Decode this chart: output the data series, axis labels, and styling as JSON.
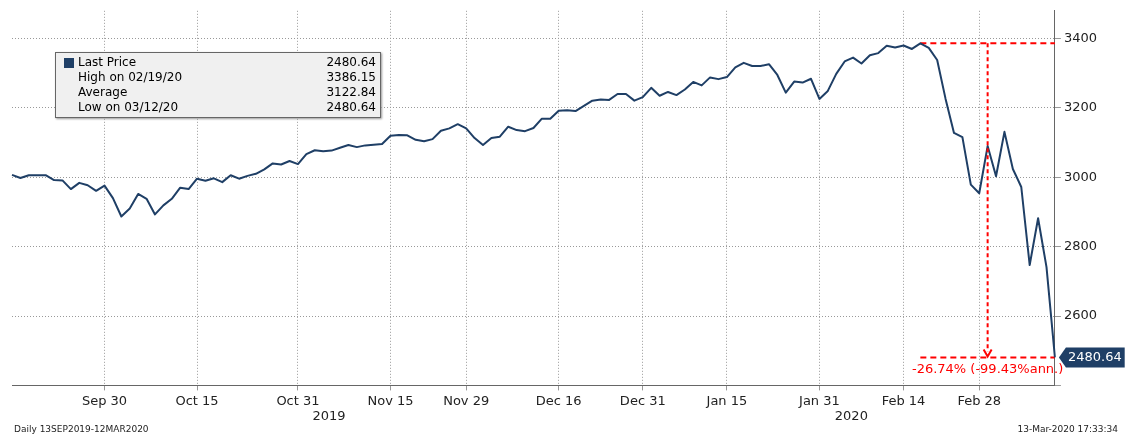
{
  "chart_data": {
    "type": "line",
    "legend": "top left",
    "grid": true,
    "marker": "none",
    "ylim": [
      2400,
      3480
    ],
    "yticks": [
      {
        "value": 2400,
        "label": null
      },
      2600,
      2800,
      3000,
      3200,
      3400
    ],
    "categories": [
      null,
      null,
      null,
      null,
      null,
      null,
      null,
      null,
      null,
      null,
      null,
      "Sep 30",
      null,
      null,
      null,
      null,
      null,
      null,
      null,
      null,
      null,
      null,
      "Oct 15",
      null,
      null,
      null,
      null,
      null,
      null,
      null,
      null,
      null,
      null,
      null,
      "Oct 31",
      null,
      null,
      null,
      null,
      null,
      null,
      null,
      null,
      null,
      null,
      "Nov 15",
      null,
      null,
      null,
      null,
      null,
      null,
      null,
      null,
      "Nov 29",
      null,
      null,
      null,
      null,
      null,
      null,
      null,
      null,
      null,
      null,
      "Dec 16",
      null,
      null,
      null,
      null,
      null,
      null,
      null,
      null,
      null,
      "Dec 31",
      null,
      null,
      null,
      null,
      null,
      null,
      null,
      null,
      null,
      "Jan 15",
      null,
      null,
      null,
      null,
      null,
      null,
      null,
      null,
      null,
      null,
      "Jan 31",
      null,
      null,
      null,
      null,
      null,
      null,
      null,
      null,
      null,
      "Feb 14",
      null,
      null,
      null,
      null,
      null,
      null,
      null,
      null,
      "Feb 28",
      null,
      null,
      null,
      null,
      null,
      null,
      null,
      null,
      null
    ],
    "series": [
      {
        "name": "Last Price",
        "color": "#1f3f66",
        "value_labels": [
          null,
          null,
          null,
          null,
          null,
          null,
          null,
          null,
          null,
          null,
          null,
          null,
          null,
          null,
          null,
          null,
          null,
          null,
          null,
          null,
          null,
          null,
          null,
          null,
          null,
          null,
          null,
          null,
          null,
          null,
          null,
          null,
          null,
          null,
          null,
          null,
          null,
          null,
          null,
          null,
          null,
          null,
          null,
          null,
          null,
          null,
          null,
          null,
          null,
          null,
          null,
          null,
          null,
          null,
          null,
          null,
          null,
          null,
          null,
          null,
          null,
          null,
          null,
          null,
          null,
          null,
          null,
          null,
          null,
          null,
          null,
          null,
          null,
          null,
          null,
          null,
          null,
          null,
          null,
          null,
          null,
          null,
          null,
          null,
          null,
          null,
          null,
          null,
          null,
          null,
          null,
          null,
          null,
          null,
          null,
          null,
          null,
          null,
          null,
          null,
          null,
          null,
          null,
          null,
          null,
          null,
          null,
          null,
          null,
          null,
          null,
          null,
          null,
          null,
          null,
          null,
          null,
          null,
          null,
          null,
          null,
          null,
          null,
          null,
          "2480.64"
        ],
        "values": [
          3007,
          2998,
          3006,
          3006,
          3006,
          2992,
          2991,
          2966,
          2984,
          2977,
          2961,
          2976,
          2940,
          2887,
          2910,
          2952,
          2938,
          2893,
          2919,
          2938,
          2970,
          2966,
          2996,
          2990,
          2997,
          2986,
          3006,
          2996,
          3004,
          3010,
          3023,
          3040,
          3037,
          3047,
          3038,
          3067,
          3078,
          3075,
          3077,
          3085,
          3093,
          3087,
          3092,
          3094,
          3096,
          3120,
          3122,
          3121,
          3108,
          3104,
          3110,
          3134,
          3141,
          3153,
          3141,
          3113,
          3093,
          3113,
          3117,
          3146,
          3136,
          3133,
          3142,
          3169,
          3169,
          3192,
          3193,
          3191,
          3206,
          3221,
          3224,
          3223,
          3240,
          3240,
          3221,
          3231,
          3258,
          3235,
          3246,
          3237,
          3253,
          3275,
          3265,
          3288,
          3283,
          3289,
          3317,
          3330,
          3321,
          3321,
          3326,
          3295,
          3244,
          3276,
          3273,
          3284,
          3226,
          3249,
          3298,
          3334,
          3345,
          3328,
          3352,
          3358,
          3379,
          3374,
          3380,
          3370,
          3386.15,
          3373,
          3338,
          3226,
          3128,
          3116,
          2979,
          2954,
          3090,
          3003,
          3131,
          3024,
          2972,
          2747,
          2882,
          2741,
          2480.64
        ]
      },
      {
        "type": "line",
        "color": "#ff0000",
        "line_style": "dashed",
        "values": [
          null,
          null,
          null,
          null,
          null,
          null,
          null,
          null,
          null,
          null,
          null,
          null,
          null,
          null,
          null,
          null,
          null,
          null,
          null,
          null,
          null,
          null,
          null,
          null,
          null,
          null,
          null,
          null,
          null,
          null,
          null,
          null,
          null,
          null,
          null,
          null,
          null,
          null,
          null,
          null,
          null,
          null,
          null,
          null,
          null,
          null,
          null,
          null,
          null,
          null,
          null,
          null,
          null,
          null,
          null,
          null,
          null,
          null,
          null,
          null,
          null,
          null,
          null,
          null,
          null,
          null,
          null,
          null,
          null,
          null,
          null,
          null,
          null,
          null,
          null,
          null,
          null,
          null,
          null,
          null,
          null,
          null,
          null,
          null,
          null,
          null,
          null,
          null,
          null,
          null,
          null,
          null,
          null,
          null,
          null,
          null,
          null,
          null,
          null,
          null,
          null,
          null,
          null,
          null,
          null,
          null,
          null,
          null,
          3386.15,
          null,
          null,
          null,
          null,
          null,
          null,
          null,
          null,
          null,
          null,
          null,
          null,
          null,
          null,
          null,
          3386.15
        ]
      },
      {
        "type": "line",
        "color": "#ff0000",
        "line_style": "dashed",
        "values": [
          null,
          null,
          null,
          null,
          null,
          null,
          null,
          null,
          null,
          null,
          null,
          null,
          null,
          null,
          null,
          null,
          null,
          null,
          null,
          null,
          null,
          null,
          null,
          null,
          null,
          null,
          null,
          null,
          null,
          null,
          null,
          null,
          null,
          null,
          null,
          null,
          null,
          null,
          null,
          null,
          null,
          null,
          null,
          null,
          null,
          null,
          null,
          null,
          null,
          null,
          null,
          null,
          null,
          null,
          null,
          null,
          null,
          null,
          null,
          null,
          null,
          null,
          null,
          null,
          null,
          null,
          null,
          null,
          null,
          null,
          null,
          null,
          null,
          null,
          null,
          null,
          null,
          null,
          null,
          null,
          null,
          null,
          null,
          null,
          null,
          null,
          null,
          null,
          null,
          null,
          null,
          null,
          null,
          null,
          null,
          null,
          null,
          null,
          null,
          null,
          null,
          null,
          null,
          null,
          null,
          null,
          null,
          null,
          2480.64,
          null,
          null,
          null,
          null,
          null,
          null,
          null,
          null,
          null,
          null,
          null,
          null,
          null,
          null,
          null,
          2480.64
        ]
      }
    ],
    "annotations": [
      "2480.64",
      "High on 02/19/20",
      "3386.15",
      "Average",
      "3122.84",
      "Low on 03/12/20",
      "2480.64",
      {
        "text": "-26.74% (-99.43%ann.)",
        "y": 2480.64
      },
      "2019",
      "2020",
      "Daily 13SEP2019-12MAR2020",
      "13-Mar-2020 17:33:34"
    ]
  }
}
